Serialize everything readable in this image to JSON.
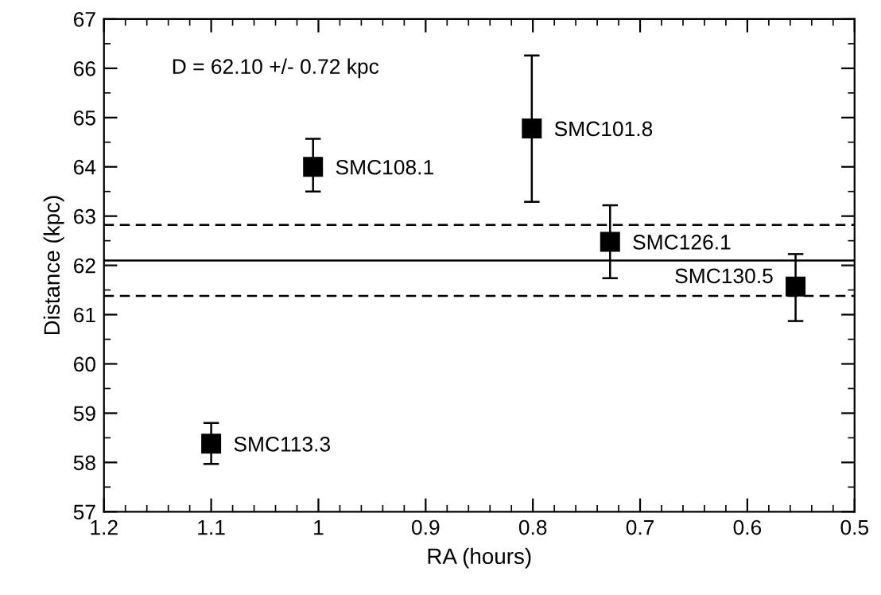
{
  "chart_data": {
    "type": "scatter",
    "xlabel": "RA (hours)",
    "ylabel": "Distance (kpc)",
    "x": [
      1.1,
      1.005,
      0.801,
      0.728,
      0.555
    ],
    "values": [
      58.38,
      64.0,
      64.78,
      62.48,
      61.57
    ],
    "errors": [
      [
        57.97,
        58.8
      ],
      [
        63.5,
        64.57
      ],
      [
        63.29,
        66.26
      ],
      [
        61.74,
        63.22
      ],
      [
        60.87,
        62.23
      ]
    ],
    "color": "#000000",
    "marker": "square",
    "annotations": [
      {
        "text": "SMC113.3",
        "x": 1.1,
        "y": 58.38
      },
      {
        "text": "SMC108.1",
        "x": 1.005,
        "y": 64.0
      },
      {
        "text": "SMC101.8",
        "x": 0.801,
        "y": 64.78
      },
      {
        "text": "SMC126.1",
        "x": 0.728,
        "y": 62.48
      },
      {
        "text": "SMC130.5",
        "x": 0.555,
        "y": 61.57
      },
      "D = 62.10 +/- 0.72 kpc"
    ],
    "ref_lines": [
      {
        "axis": "y",
        "value": 62.1,
        "line_style": "solid"
      },
      {
        "axis": "y",
        "value": 62.82,
        "line_style": "dashed"
      },
      {
        "axis": "y",
        "value": 61.38,
        "line_style": "dashed"
      }
    ],
    "xlim": [
      1.2,
      0.5
    ],
    "xticks": [
      1.2,
      1.1,
      1,
      0.9,
      0.8,
      0.7,
      0.6,
      0.5
    ],
    "ylim": [
      57,
      67
    ],
    "yticks": [
      57,
      58,
      59,
      60,
      61,
      62,
      63,
      64,
      65,
      66,
      67
    ],
    "grid": false,
    "legend": false
  }
}
